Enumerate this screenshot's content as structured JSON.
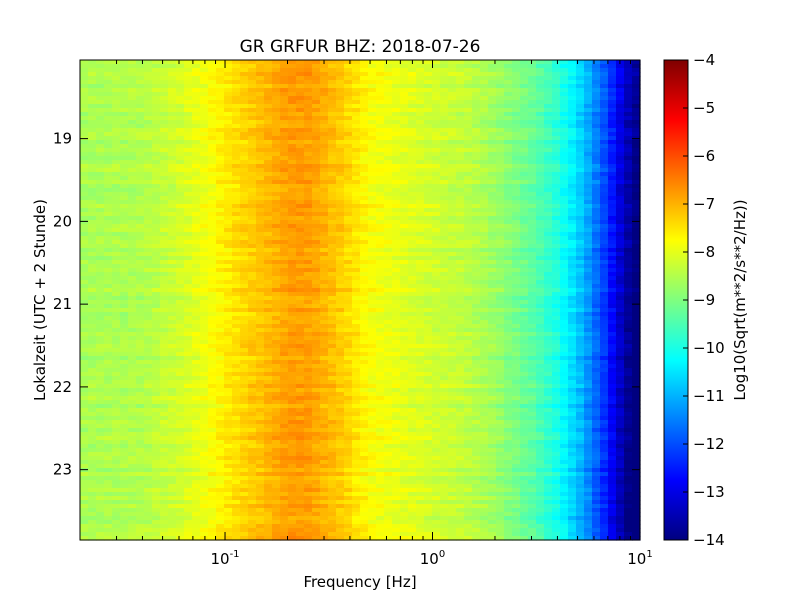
{
  "chart_data": {
    "type": "heatmap",
    "title": "GR GRFUR BHZ: 2018-07-26",
    "xlabel": "Frequency [Hz]",
    "ylabel": "Lokalzeit (UTC + 2 Stunde)",
    "x_scale": "log",
    "xlim": [
      0.02,
      10
    ],
    "ylim": [
      18.05,
      23.85
    ],
    "y_inverted": true,
    "x_tick_values": [
      0.1,
      1,
      10
    ],
    "x_tick_labels": [
      {
        "base": "10",
        "exp": "-1"
      },
      {
        "base": "10",
        "exp": "0"
      },
      {
        "base": "10",
        "exp": "1"
      }
    ],
    "y_ticks": [
      19,
      20,
      21,
      22,
      23
    ],
    "colorbar": {
      "label": "Log10(Sqrt(m**2/s**2/Hz))",
      "range": [
        -14,
        -4
      ],
      "ticks": [
        -4,
        -5,
        -6,
        -7,
        -8,
        -9,
        -10,
        -11,
        -12,
        -13,
        -14
      ],
      "colormap": "jet",
      "colors": [
        "#00007f",
        "#0000ff",
        "#007fff",
        "#00ffff",
        "#7fff7f",
        "#ffff00",
        "#ff7f00",
        "#ff0000",
        "#7f0000"
      ]
    },
    "spectrum_profile": {
      "frequency_hz": [
        0.02,
        0.04,
        0.06,
        0.08,
        0.1,
        0.13,
        0.17,
        0.2,
        0.25,
        0.3,
        0.4,
        0.5,
        0.7,
        1.0,
        1.5,
        2.0,
        3.0,
        4.0,
        5.0,
        6.0,
        7.0,
        8.0,
        9.0,
        10.0
      ],
      "log10_amplitude": [
        -8.6,
        -8.5,
        -8.2,
        -7.9,
        -7.6,
        -7.3,
        -7.0,
        -6.8,
        -6.8,
        -7.0,
        -7.4,
        -7.8,
        -8.0,
        -8.2,
        -8.4,
        -8.7,
        -9.2,
        -9.8,
        -10.5,
        -11.3,
        -12.1,
        -12.9,
        -13.5,
        -13.9
      ]
    }
  }
}
